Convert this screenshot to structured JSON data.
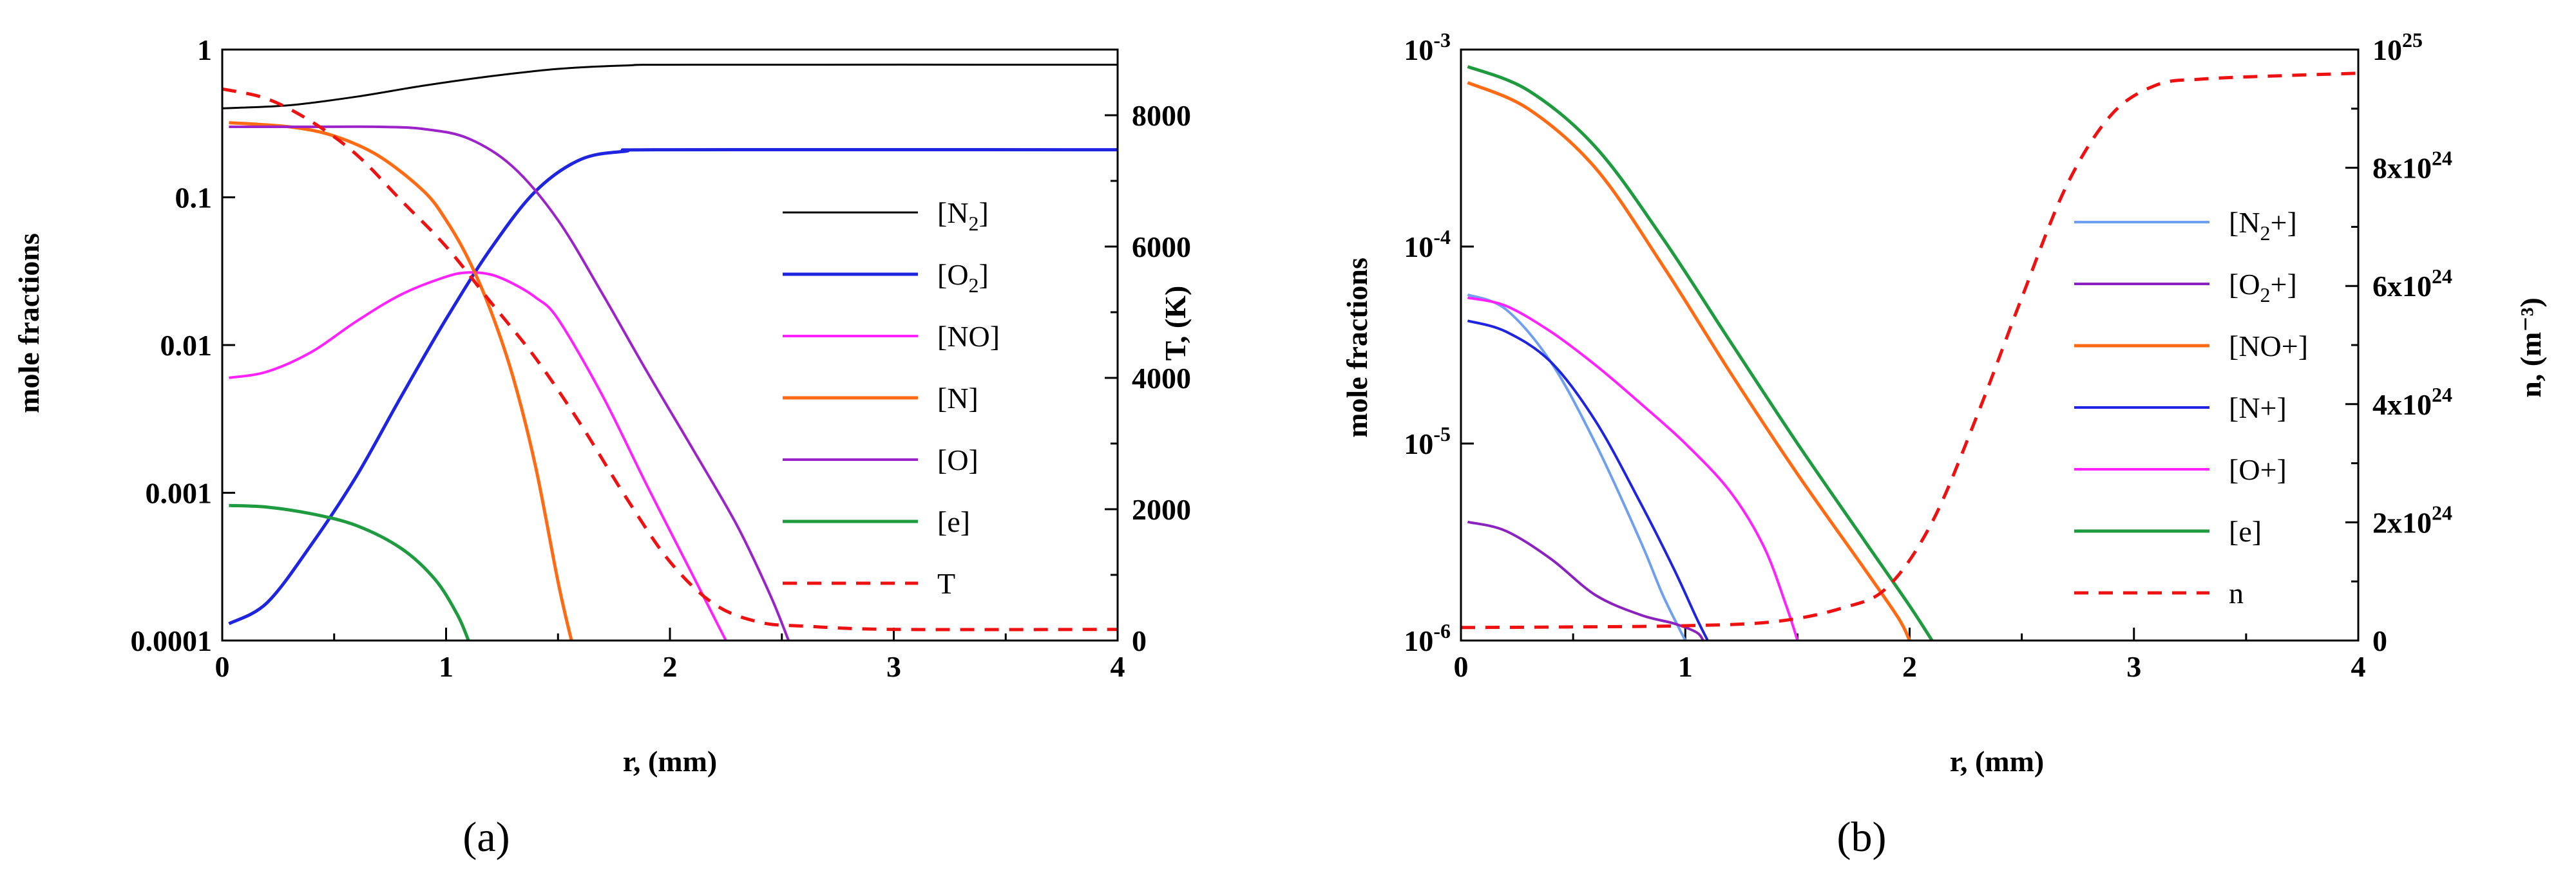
{
  "chart_data": [
    {
      "type": "line",
      "panel_label": "(a)",
      "xlabel": "r, (mm)",
      "ylabel": "mole fractions",
      "y2label": "T, (K)",
      "xlim": [
        0,
        4
      ],
      "ylim": [
        0.0001,
        1
      ],
      "yscale": "log",
      "y2lim": [
        0,
        9000
      ],
      "x_ticks": [
        "0",
        "1",
        "2",
        "3",
        "4"
      ],
      "y_ticks": [
        "0.0001",
        "0.001",
        "0.01",
        "0.1",
        "1"
      ],
      "y2_ticks": [
        "0",
        "2000",
        "4000",
        "6000",
        "8000"
      ],
      "legend_position": "center-right",
      "series": [
        {
          "name": "[N2]",
          "label_main": "[N",
          "label_sub": "2",
          "label_tail": "]",
          "color": "#000000",
          "dash": "",
          "width": 3,
          "axis": "left",
          "x": [
            0,
            0.3,
            0.6,
            0.9,
            1.2,
            1.5,
            1.8,
            2.1,
            4.0
          ],
          "y": [
            0.4,
            0.42,
            0.48,
            0.57,
            0.66,
            0.74,
            0.78,
            0.79,
            0.79
          ]
        },
        {
          "name": "[O2]",
          "label_main": "[O",
          "label_sub": "2",
          "label_tail": "]",
          "color": "#1f24e0",
          "dash": "",
          "width": 5,
          "axis": "left",
          "x": [
            0.03,
            0.2,
            0.4,
            0.6,
            0.8,
            1.0,
            1.2,
            1.4,
            1.6,
            1.8,
            2.0,
            4.0
          ],
          "y": [
            0.00013,
            0.00018,
            0.00045,
            0.0013,
            0.0045,
            0.015,
            0.045,
            0.11,
            0.18,
            0.205,
            0.21,
            0.21
          ]
        },
        {
          "name": "[NO]",
          "label_main": "[NO]",
          "label_sub": "",
          "label_tail": "",
          "color": "#ff22ff",
          "dash": "",
          "width": 4,
          "axis": "left",
          "x": [
            0.03,
            0.2,
            0.4,
            0.6,
            0.8,
            1.0,
            1.1,
            1.2,
            1.3,
            1.4,
            1.5,
            1.7,
            1.9,
            2.1,
            2.25
          ],
          "y": [
            0.006,
            0.0066,
            0.009,
            0.0145,
            0.022,
            0.029,
            0.031,
            0.03,
            0.026,
            0.021,
            0.015,
            0.0045,
            0.0011,
            0.00028,
            0.0001
          ]
        },
        {
          "name": "[N]",
          "label_main": "[N]",
          "label_sub": "",
          "label_tail": "",
          "color": "#ff6a13",
          "dash": "",
          "width": 5,
          "axis": "left",
          "x": [
            0.03,
            0.3,
            0.5,
            0.7,
            0.9,
            1.0,
            1.1,
            1.2,
            1.3,
            1.4,
            1.5,
            1.56
          ],
          "y": [
            0.32,
            0.3,
            0.26,
            0.19,
            0.11,
            0.07,
            0.038,
            0.017,
            0.006,
            0.0015,
            0.00025,
            0.0001
          ]
        },
        {
          "name": "[O]",
          "label_main": "[O]",
          "label_sub": "",
          "label_tail": "",
          "color": "#9b23c9",
          "dash": "",
          "width": 4,
          "axis": "left",
          "x": [
            0.03,
            0.4,
            0.7,
            0.9,
            1.1,
            1.3,
            1.5,
            1.7,
            1.9,
            2.1,
            2.3,
            2.45,
            2.53
          ],
          "y": [
            0.3,
            0.3,
            0.3,
            0.29,
            0.25,
            0.16,
            0.07,
            0.022,
            0.0065,
            0.002,
            0.0006,
            0.0002,
            0.0001
          ]
        },
        {
          "name": "[e]",
          "label_main": "[e]",
          "label_sub": "",
          "label_tail": "",
          "color": "#1f9b3f",
          "dash": "",
          "width": 5,
          "axis": "left",
          "x": [
            0.03,
            0.2,
            0.4,
            0.6,
            0.8,
            0.95,
            1.05,
            1.1
          ],
          "y": [
            0.00082,
            0.0008,
            0.00072,
            0.0006,
            0.00042,
            0.00026,
            0.00015,
            0.0001
          ]
        },
        {
          "name": "T",
          "label_main": "T",
          "label_sub": "",
          "label_tail": "",
          "color": "#ee1111",
          "dash": "22,16",
          "width": 5,
          "axis": "right",
          "x": [
            0,
            0.2,
            0.4,
            0.6,
            0.8,
            1.0,
            1.2,
            1.4,
            1.6,
            1.8,
            2.0,
            2.2,
            2.4,
            2.6,
            3.0,
            4.0
          ],
          "y": [
            8400,
            8250,
            7900,
            7400,
            6700,
            6000,
            5150,
            4300,
            3300,
            2200,
            1200,
            550,
            280,
            220,
            170,
            170
          ]
        }
      ]
    },
    {
      "type": "line",
      "panel_label": "(b)",
      "xlabel": "r, (mm)",
      "ylabel": "mole fractions",
      "y2label": "n, (m⁻³)",
      "xlim": [
        0,
        4
      ],
      "ylim": [
        1e-06,
        0.001
      ],
      "yscale": "log",
      "y2lim": [
        0,
        1e+25
      ],
      "x_ticks": [
        "0",
        "1",
        "2",
        "3",
        "4"
      ],
      "y_ticks": [
        {
          "base": "10",
          "exp": "-6"
        },
        {
          "base": "10",
          "exp": "-5"
        },
        {
          "base": "10",
          "exp": "-4"
        },
        {
          "base": "10",
          "exp": "-3"
        }
      ],
      "y2_ticks": [
        {
          "base": "0",
          "exp": ""
        },
        {
          "base": "2x10",
          "exp": "24"
        },
        {
          "base": "4x10",
          "exp": "24"
        },
        {
          "base": "6x10",
          "exp": "24"
        },
        {
          "base": "8x10",
          "exp": "24"
        },
        {
          "base": "10",
          "exp": "25"
        }
      ],
      "legend_position": "center-right",
      "series": [
        {
          "name": "[N2+]",
          "label_main": "[N",
          "label_sub": "2",
          "label_tail": "+]",
          "color": "#6fa0f0",
          "dash": "",
          "width": 4,
          "axis": "left",
          "x": [
            0.03,
            0.2,
            0.4,
            0.6,
            0.8,
            0.9,
            1.0
          ],
          "y": [
            5.7e-05,
            4.8e-05,
            2.6e-05,
            1e-05,
            3.2e-06,
            1.7e-06,
            1e-06
          ]
        },
        {
          "name": "[O2+]",
          "label_main": "[O",
          "label_sub": "2",
          "label_tail": "+]",
          "color": "#8b22c0",
          "dash": "",
          "width": 4,
          "axis": "left",
          "x": [
            0.03,
            0.2,
            0.4,
            0.6,
            0.8,
            0.95,
            1.05,
            1.08
          ],
          "y": [
            4e-06,
            3.6e-06,
            2.6e-06,
            1.7e-06,
            1.35e-06,
            1.22e-06,
            1.1e-06,
            1e-06
          ]
        },
        {
          "name": "[NO+]",
          "label_main": "[NO+]",
          "label_sub": "",
          "label_tail": "",
          "color": "#ff6a13",
          "dash": "",
          "width": 5,
          "axis": "left",
          "x": [
            0.03,
            0.3,
            0.6,
            0.9,
            1.2,
            1.5,
            1.8,
            1.95,
            2.0
          ],
          "y": [
            0.00068,
            0.0005,
            0.00025,
            8e-05,
            2.3e-05,
            7e-06,
            2.3e-06,
            1.3e-06,
            1e-06
          ]
        },
        {
          "name": "[N+]",
          "label_main": "[N+]",
          "label_sub": "",
          "label_tail": "",
          "color": "#1f24e0",
          "dash": "",
          "width": 4,
          "axis": "left",
          "x": [
            0.03,
            0.2,
            0.4,
            0.6,
            0.8,
            0.95,
            1.05,
            1.1
          ],
          "y": [
            4.2e-05,
            3.7e-05,
            2.6e-05,
            1.3e-05,
            5e-06,
            2.3e-06,
            1.3e-06,
            1e-06
          ]
        },
        {
          "name": "[O+]",
          "label_main": "[O+]",
          "label_sub": "",
          "label_tail": "",
          "color": "#ff22ff",
          "dash": "",
          "width": 4,
          "axis": "left",
          "x": [
            0.03,
            0.2,
            0.4,
            0.6,
            0.8,
            1.0,
            1.2,
            1.35,
            1.45,
            1.5
          ],
          "y": [
            5.5e-05,
            5e-05,
            3.7e-05,
            2.5e-05,
            1.6e-05,
            1e-05,
            5.7e-06,
            3e-06,
            1.5e-06,
            1e-06
          ]
        },
        {
          "name": "[e]",
          "label_main": "[e]",
          "label_sub": "",
          "label_tail": "",
          "color": "#1f9b3f",
          "dash": "",
          "width": 5,
          "axis": "left",
          "x": [
            0.03,
            0.3,
            0.6,
            0.9,
            1.2,
            1.5,
            1.8,
            2.0,
            2.1
          ],
          "y": [
            0.00082,
            0.00062,
            0.00032,
            0.00011,
            3.3e-05,
            1e-05,
            3.2e-06,
            1.5e-06,
            1e-06
          ]
        },
        {
          "name": "n",
          "label_main": "n",
          "label_sub": "",
          "label_tail": "",
          "color": "#ee1111",
          "dash": "22,16",
          "width": 5,
          "axis": "right",
          "x": [
            0,
            0.5,
            1.0,
            1.4,
            1.7,
            1.9,
            2.1,
            2.3,
            2.5,
            2.7,
            2.9,
            3.1,
            3.3,
            3.6,
            4.0
          ],
          "y": [
            2.2e+23,
            2.3e+23,
            2.5e+23,
            3.2e+23,
            5.5e+23,
            9e+23,
            2e+24,
            3.8e+24,
            5.8e+24,
            7.7e+24,
            8.9e+24,
            9.4e+24,
            9.5e+24,
            9.55e+24,
            9.6e+24
          ]
        }
      ]
    }
  ]
}
